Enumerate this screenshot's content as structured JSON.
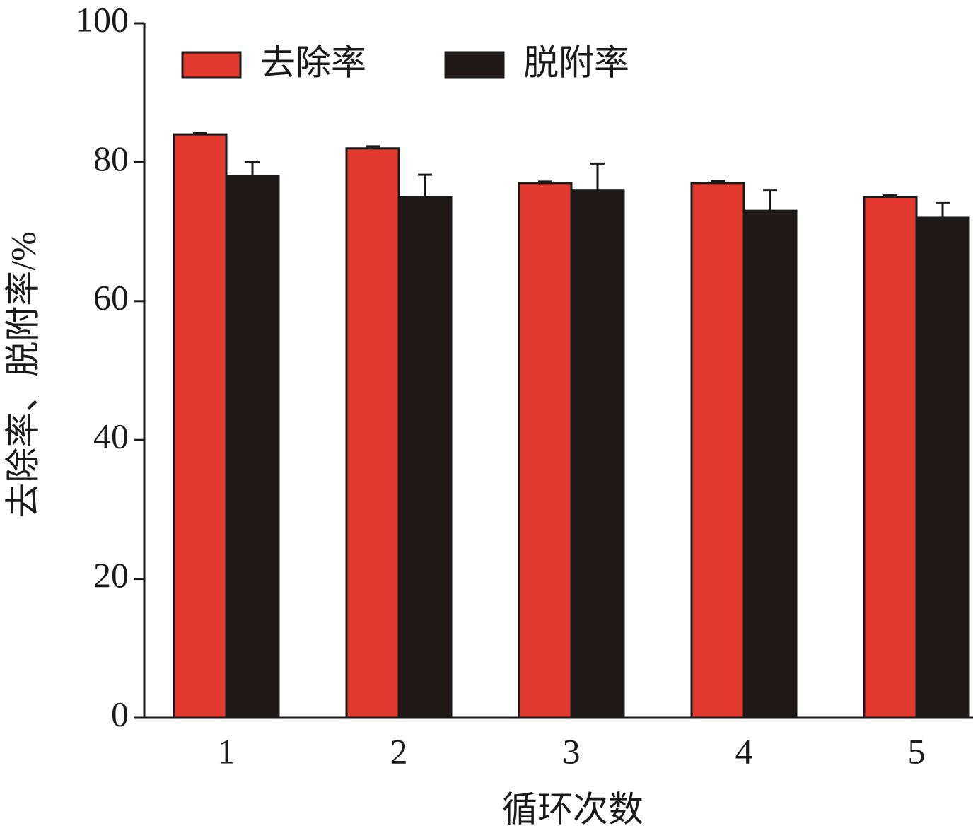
{
  "chart_data": {
    "type": "bar",
    "x_label": "循环次数",
    "y_label": "去除率、脱附率/%",
    "categories": [
      "1",
      "2",
      "3",
      "4",
      "5"
    ],
    "series": [
      {
        "name": "去除率",
        "color": "#e33a30",
        "values": [
          84,
          82,
          77,
          77,
          75
        ],
        "errors": [
          0.2,
          0.3,
          0.2,
          0.3,
          0.3
        ]
      },
      {
        "name": "脱附率",
        "color": "#1f1a17",
        "values": [
          78,
          75,
          76,
          73,
          72
        ],
        "errors": [
          2,
          3.2,
          3.8,
          3,
          2.2
        ]
      }
    ],
    "ylim": [
      0,
      100
    ],
    "yticks": [
      0,
      20,
      40,
      60,
      80,
      100
    ],
    "legend": "top-left",
    "grid": false
  }
}
